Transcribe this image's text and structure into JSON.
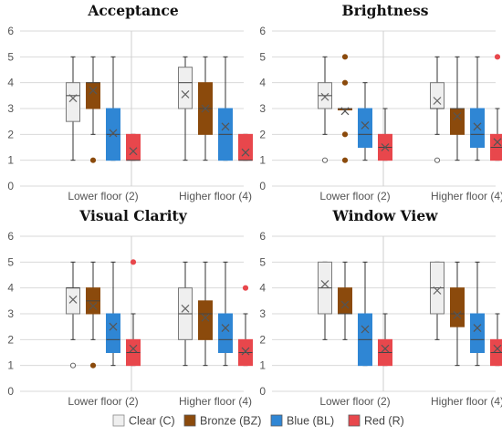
{
  "chart_data": [
    {
      "type": "box",
      "title": "Acceptance",
      "categories": [
        "Lower floor (2)",
        "Higher floor (4)"
      ],
      "ylim": [
        0,
        6
      ],
      "yticks": [
        0,
        1,
        2,
        3,
        4,
        5,
        6
      ],
      "series": [
        {
          "name": "Clear (C)",
          "color": "#efefef",
          "stats": [
            {
              "min": 1,
              "q1": 2.5,
              "median": 3.5,
              "q3": 4,
              "max": 5,
              "mean": 3.4,
              "outliers": []
            },
            {
              "min": 1,
              "q1": 3,
              "median": 4,
              "q3": 4.6,
              "max": 5,
              "mean": 3.55,
              "outliers": []
            }
          ]
        },
        {
          "name": "Bronze (BZ)",
          "color": "#8b4a0c",
          "stats": [
            {
              "min": 2,
              "q1": 3,
              "median": 4,
              "q3": 4,
              "max": 5,
              "mean": 3.7,
              "outliers": [
                1
              ]
            },
            {
              "min": 1,
              "q1": 2,
              "median": 3,
              "q3": 4,
              "max": 5,
              "mean": 3.0,
              "outliers": []
            }
          ]
        },
        {
          "name": "Blue (BL)",
          "color": "#2f86d4",
          "stats": [
            {
              "min": 1,
              "q1": 1,
              "median": 2,
              "q3": 3,
              "max": 5,
              "mean": 2.05,
              "outliers": []
            },
            {
              "min": 1,
              "q1": 1,
              "median": 2,
              "q3": 3,
              "max": 5,
              "mean": 2.3,
              "outliers": []
            }
          ]
        },
        {
          "name": "Red (R)",
          "color": "#e8474c",
          "stats": [
            {
              "min": 1,
              "q1": 1,
              "median": 1,
              "q3": 2,
              "max": 2,
              "mean": 1.35,
              "outliers": []
            },
            {
              "min": 1,
              "q1": 1,
              "median": 1,
              "q3": 2,
              "max": 2,
              "mean": 1.3,
              "outliers": []
            }
          ]
        }
      ]
    },
    {
      "type": "box",
      "title": "Brightness",
      "categories": [
        "Lower floor (2)",
        "Higher floor (4)"
      ],
      "ylim": [
        0,
        6
      ],
      "yticks": [
        0,
        1,
        2,
        3,
        4,
        5,
        6
      ],
      "series": [
        {
          "name": "Clear (C)",
          "color": "#efefef",
          "stats": [
            {
              "min": 2,
              "q1": 3,
              "median": 3.5,
              "q3": 4,
              "max": 5,
              "mean": 3.45,
              "outliers": [
                1
              ]
            },
            {
              "min": 2,
              "q1": 3,
              "median": 3,
              "q3": 4,
              "max": 5,
              "mean": 3.3,
              "outliers": [
                1
              ]
            }
          ]
        },
        {
          "name": "Bronze (BZ)",
          "color": "#8b4a0c",
          "stats": [
            {
              "min": 3,
              "q1": 3,
              "median": 3,
              "q3": 3,
              "max": 3,
              "mean": 2.9,
              "outliers": [
                1,
                2,
                4,
                5
              ]
            },
            {
              "min": 1,
              "q1": 2,
              "median": 3,
              "q3": 3,
              "max": 5,
              "mean": 2.7,
              "outliers": []
            }
          ]
        },
        {
          "name": "Blue (BL)",
          "color": "#2f86d4",
          "stats": [
            {
              "min": 1,
              "q1": 1.5,
              "median": 2,
              "q3": 3,
              "max": 4,
              "mean": 2.35,
              "outliers": []
            },
            {
              "min": 1,
              "q1": 1.5,
              "median": 2,
              "q3": 3,
              "max": 5,
              "mean": 2.3,
              "outliers": []
            }
          ]
        },
        {
          "name": "Red (R)",
          "color": "#e8474c",
          "stats": [
            {
              "min": 1,
              "q1": 1,
              "median": 1.5,
              "q3": 2,
              "max": 3,
              "mean": 1.5,
              "outliers": []
            },
            {
              "min": 1,
              "q1": 1,
              "median": 1.5,
              "q3": 2,
              "max": 3,
              "mean": 1.7,
              "outliers": [
                5
              ]
            }
          ]
        }
      ]
    },
    {
      "type": "box",
      "title": "Visual Clarity",
      "categories": [
        "Lower floor (2)",
        "Higher floor (4)"
      ],
      "ylim": [
        0,
        6
      ],
      "yticks": [
        0,
        1,
        2,
        3,
        4,
        5,
        6
      ],
      "series": [
        {
          "name": "Clear (C)",
          "color": "#efefef",
          "stats": [
            {
              "min": 2,
              "q1": 3,
              "median": 4,
              "q3": 4,
              "max": 5,
              "mean": 3.55,
              "outliers": [
                1
              ]
            },
            {
              "min": 1,
              "q1": 2,
              "median": 3,
              "q3": 4,
              "max": 5,
              "mean": 3.2,
              "outliers": []
            }
          ]
        },
        {
          "name": "Bronze (BZ)",
          "color": "#8b4a0c",
          "stats": [
            {
              "min": 2,
              "q1": 3,
              "median": 3.5,
              "q3": 4,
              "max": 5,
              "mean": 3.3,
              "outliers": [
                1
              ]
            },
            {
              "min": 1,
              "q1": 2,
              "median": 3,
              "q3": 3.5,
              "max": 5,
              "mean": 2.85,
              "outliers": []
            }
          ]
        },
        {
          "name": "Blue (BL)",
          "color": "#2f86d4",
          "stats": [
            {
              "min": 1,
              "q1": 1.5,
              "median": 2,
              "q3": 3,
              "max": 5,
              "mean": 2.5,
              "outliers": []
            },
            {
              "min": 1,
              "q1": 1.5,
              "median": 2,
              "q3": 3,
              "max": 5,
              "mean": 2.45,
              "outliers": []
            }
          ]
        },
        {
          "name": "Red (R)",
          "color": "#e8474c",
          "stats": [
            {
              "min": 1,
              "q1": 1,
              "median": 1.5,
              "q3": 2,
              "max": 3,
              "mean": 1.65,
              "outliers": [
                5
              ]
            },
            {
              "min": 1,
              "q1": 1,
              "median": 1.5,
              "q3": 2,
              "max": 3,
              "mean": 1.55,
              "outliers": [
                4
              ]
            }
          ]
        }
      ]
    },
    {
      "type": "box",
      "title": "Window View",
      "categories": [
        "Lower floor (2)",
        "Higher floor (4)"
      ],
      "ylim": [
        0,
        6
      ],
      "yticks": [
        0,
        1,
        2,
        3,
        4,
        5,
        6
      ],
      "series": [
        {
          "name": "Clear (C)",
          "color": "#efefef",
          "stats": [
            {
              "min": 2,
              "q1": 3,
              "median": 4,
              "q3": 5,
              "max": 5,
              "mean": 4.15,
              "outliers": []
            },
            {
              "min": 2,
              "q1": 3,
              "median": 4,
              "q3": 5,
              "max": 5,
              "mean": 3.9,
              "outliers": []
            }
          ]
        },
        {
          "name": "Bronze (BZ)",
          "color": "#8b4a0c",
          "stats": [
            {
              "min": 2,
              "q1": 3,
              "median": 3,
              "q3": 4,
              "max": 5,
              "mean": 3.35,
              "outliers": []
            },
            {
              "min": 1,
              "q1": 2.5,
              "median": 3,
              "q3": 4,
              "max": 5,
              "mean": 2.95,
              "outliers": []
            }
          ]
        },
        {
          "name": "Blue (BL)",
          "color": "#2f86d4",
          "stats": [
            {
              "min": 1,
              "q1": 1,
              "median": 2,
              "q3": 3,
              "max": 5,
              "mean": 2.4,
              "outliers": []
            },
            {
              "min": 1,
              "q1": 1.5,
              "median": 2,
              "q3": 3,
              "max": 5,
              "mean": 2.45,
              "outliers": []
            }
          ]
        },
        {
          "name": "Red (R)",
          "color": "#e8474c",
          "stats": [
            {
              "min": 1,
              "q1": 1,
              "median": 1.5,
              "q3": 2,
              "max": 3,
              "mean": 1.65,
              "outliers": []
            },
            {
              "min": 1,
              "q1": 1,
              "median": 1.5,
              "q3": 2,
              "max": 3,
              "mean": 1.65,
              "outliers": []
            }
          ]
        }
      ]
    }
  ],
  "legend": [
    {
      "label": "Clear (C)",
      "color": "#efefef"
    },
    {
      "label": "Bronze (BZ)",
      "color": "#8b4a0c"
    },
    {
      "label": "Blue (BL)",
      "color": "#2f86d4"
    },
    {
      "label": "Red (R)",
      "color": "#e8474c"
    }
  ]
}
